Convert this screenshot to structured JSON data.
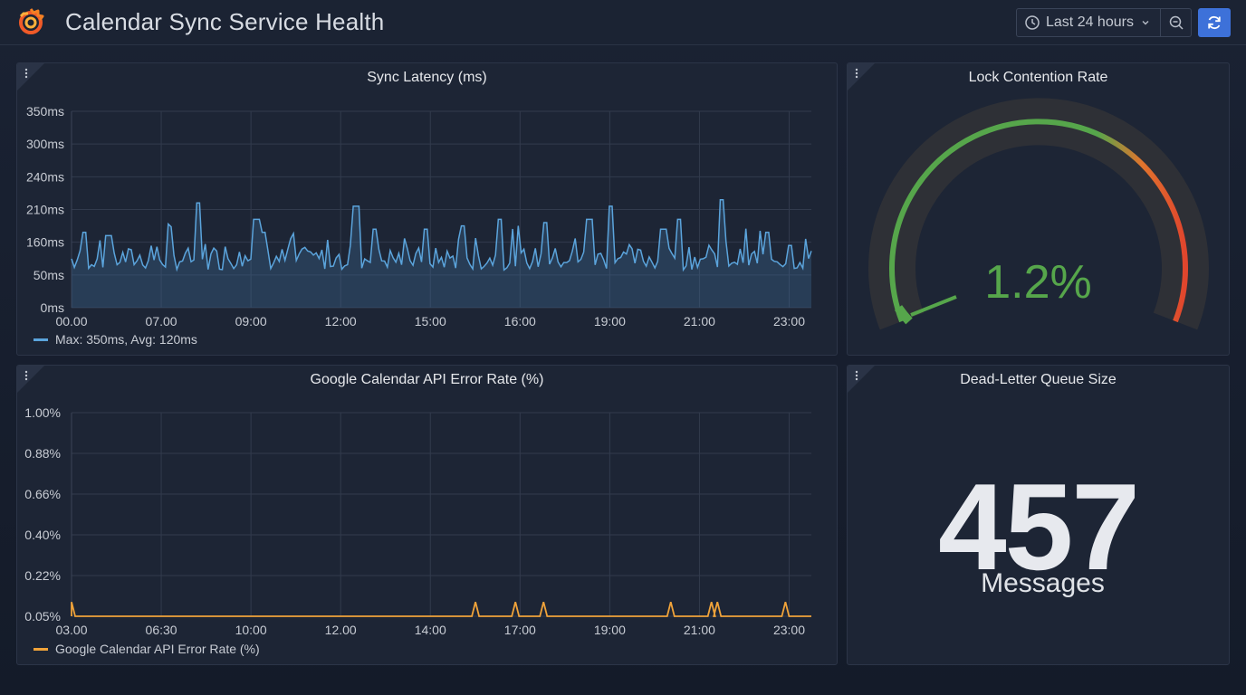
{
  "dashboard": {
    "title": "Calendar Sync Service Health",
    "time_range": "Last 24 hours",
    "refresh_color": "#3d71d9"
  },
  "panels": {
    "latency": {
      "title": "Sync Latency (ms)",
      "legend": "Max: 350ms, Avg: 120ms",
      "color": "#5ba4dc"
    },
    "errors": {
      "title": "Google Calendar API Error Rate (%)",
      "legend": "Google Calendar API Error Rate (%)",
      "color": "#f0a33a"
    },
    "lock": {
      "title": "Lock Contention Rate",
      "value": "1.2%",
      "value_num": 1.2,
      "color": "#56a64b"
    },
    "dlq": {
      "title": "Dead-Letter Queue Size",
      "value": "457",
      "unit": "Messages"
    }
  },
  "chart_data": [
    {
      "type": "line",
      "title": "Sync Latency (ms)",
      "ytick_labels": [
        "0ms",
        "50ms",
        "160ms",
        "210ms",
        "240ms",
        "300ms",
        "350ms"
      ],
      "xtick_labels": [
        "00.00",
        "07.00",
        "09:00",
        "12:00",
        "15:00",
        "16:00",
        "19:00",
        "21:00",
        "23:00"
      ],
      "y_levels": [
        0,
        1,
        2,
        3,
        4,
        5,
        6
      ],
      "series": [
        {
          "name": "Max: 350ms, Avg: 120ms",
          "x": [
            0,
            0.4,
            0.8,
            1.2,
            1.6,
            2.0,
            2.4,
            2.8,
            3.2,
            3.6,
            4.0,
            4.4,
            4.8,
            5.2,
            5.6,
            6.0,
            6.4,
            6.8,
            7.2,
            7.6,
            8.0,
            8.4,
            8.8,
            9.2,
            9.6,
            10.0,
            10.4,
            10.8,
            11.2,
            11.6,
            12.0,
            12.4,
            12.8,
            13.2,
            13.6,
            14.0,
            14.4,
            14.8,
            15.2,
            15.6,
            16.0,
            16.4,
            16.8,
            17.2,
            17.6,
            18.0,
            18.4,
            18.8,
            19.2,
            19.6,
            20.0,
            20.4,
            20.8,
            21.2,
            21.6,
            22.0,
            22.4,
            22.8,
            23.2,
            23.6,
            24.0,
            24.4,
            24.8,
            25.2,
            25.6,
            26.0,
            26.4,
            26.8,
            27.2,
            27.6,
            28.0,
            28.4,
            28.8,
            29.2,
            29.6,
            30.0,
            30.4,
            30.8,
            31.2,
            31.6,
            32.0,
            32.4,
            32.8,
            33.2,
            33.6,
            34.0,
            34.4,
            34.8,
            35.2,
            35.6,
            36.0,
            36.4,
            36.8,
            37.2,
            37.6,
            38.0,
            38.4,
            38.8,
            39.2,
            39.6,
            40.0,
            40.4,
            40.8,
            41.2,
            41.6,
            42.0,
            42.4,
            42.8,
            43.2,
            43.6,
            44.0,
            44.4,
            44.8,
            45.2,
            45.6,
            46.0,
            46.4,
            46.8,
            47.2,
            47.6,
            48.0,
            48.4,
            48.8,
            49.2,
            49.6,
            50.0,
            50.4,
            50.8
          ],
          "values": [
            2.2,
            1.6,
            1.3,
            1.1,
            1.8,
            1.2,
            1.4,
            2.0,
            1.3,
            1.5,
            1.2,
            1.9,
            2.9,
            1.8,
            1.3,
            1.5,
            2.0,
            1.4,
            1.2,
            1.6,
            1.3,
            1.5,
            1.1,
            1.4,
            1.3,
            1.6,
            1.2,
            1.5,
            1.2,
            1.4,
            2.7,
            1.6,
            1.3,
            1.4,
            1.2,
            1.5,
            1.3,
            1.4,
            1.6,
            1.2,
            1.4,
            1.3,
            1.8,
            1.4,
            1.2,
            1.5,
            1.3,
            1.4,
            1.2,
            1.6,
            1.3,
            2.0,
            1.5,
            1.2,
            1.8,
            1.4,
            1.3,
            2.2,
            1.5,
            1.3,
            1.6,
            1.2,
            1.4,
            1.3,
            1.5,
            1.2,
            1.4,
            2.0,
            1.3,
            1.5,
            1.2,
            1.4,
            1.6,
            1.3,
            1.2,
            1.5,
            1.3,
            1.4,
            1.2,
            1.6,
            1.3,
            1.5,
            1.2,
            1.4,
            1.3,
            1.7,
            1.2,
            1.6,
            1.3,
            1.5,
            1.2,
            1.4,
            1.3,
            1.6,
            1.2,
            1.5,
            1.3,
            1.4,
            1.2,
            1.8,
            1.3,
            1.6,
            1.2,
            1.4,
            1.3,
            1.5,
            1.2,
            1.4,
            1.3,
            1.6,
            1.2,
            1.5,
            1.3,
            1.4,
            1.2,
            1.6,
            1.3,
            1.5,
            1.2,
            1.4,
            1.3,
            1.5,
            1.2,
            1.4,
            1.3,
            1.2,
            1.4,
            1.3
          ],
          "_comment": "x values are hours scaled 0-50.8 across axis"
        }
      ]
    },
    {
      "type": "line",
      "title": "Google Calendar API Error Rate (%)",
      "ytick_labels": [
        "0.05%",
        "0.22%",
        "0.40%",
        "0.66%",
        "0.88%",
        "1.00%"
      ],
      "xtick_labels": [
        "03.00",
        "06:30",
        "10:00",
        "12.00",
        "14:00",
        "17:00",
        "19:00",
        "21:00",
        "23:00"
      ],
      "y_levels": [
        0,
        1,
        2,
        3,
        4,
        5
      ],
      "series": [
        {
          "name": "Google Calendar API Error Rate (%)",
          "spikes_at": [
            0.0,
            0.546,
            0.6,
            0.638,
            0.81,
            0.865,
            0.873,
            0.965
          ],
          "spike_height": 0.35,
          "baseline": 0
        }
      ]
    }
  ]
}
